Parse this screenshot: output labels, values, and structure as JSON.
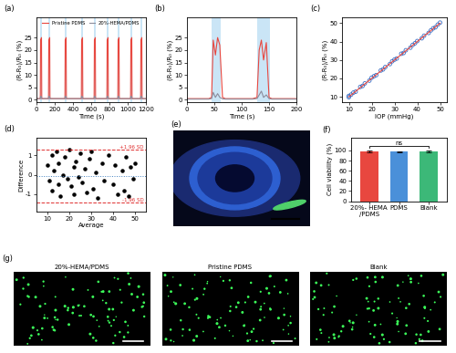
{
  "chart_data": [
    {
      "type": "line",
      "title": "(a)",
      "x_label": "Time (s)",
      "y_label": "(R-R₀)/R₀ (%)",
      "x": [
        0,
        42,
        45,
        55,
        58,
        132,
        135,
        145,
        148,
        312,
        315,
        325,
        328,
        492,
        495,
        505,
        508,
        632,
        635,
        645,
        648,
        772,
        775,
        785,
        788,
        892,
        895,
        905,
        908,
        1032,
        1035,
        1045,
        1048,
        1142,
        1145,
        1155,
        1158,
        1200
      ],
      "series": [
        {
          "name": "Pristine PDMS",
          "color": "#e8473f",
          "values": [
            0.5,
            0.5,
            24,
            25,
            0.5,
            0.5,
            24,
            25,
            0.5,
            0.5,
            24,
            25,
            0.5,
            0.5,
            24,
            25,
            0.5,
            0.5,
            24,
            25,
            0.5,
            0.5,
            24,
            25,
            0.5,
            0.5,
            24,
            25,
            0.5,
            0.5,
            24,
            25,
            0.5,
            0.5,
            24,
            25,
            0.5,
            0.5
          ]
        },
        {
          "name": "20%-HEMA/PDMS",
          "color": "#8c8c9c",
          "values": [
            0.5,
            0.5,
            1.5,
            1.2,
            0.5,
            0.5,
            1.5,
            1.2,
            0.5,
            0.5,
            1.5,
            1.2,
            0.5,
            0.5,
            1.5,
            1.2,
            0.5,
            0.5,
            1.5,
            1.2,
            0.5,
            0.5,
            1.5,
            1.2,
            0.5,
            0.5,
            1.5,
            1.2,
            0.5,
            0.5,
            1.5,
            1.2,
            0.5,
            0.5,
            1.5,
            1.2,
            0.5,
            0.5
          ]
        }
      ],
      "shaded_x": [
        [
          42,
          58
        ],
        [
          132,
          148
        ],
        [
          312,
          328
        ],
        [
          492,
          508
        ],
        [
          632,
          648
        ],
        [
          772,
          788
        ],
        [
          892,
          908
        ],
        [
          1032,
          1048
        ],
        [
          1142,
          1158
        ]
      ],
      "xlim": [
        0,
        1200
      ],
      "xticks": [
        0,
        200,
        400,
        600,
        800,
        1000,
        1200
      ],
      "ylim": [
        -1,
        33
      ],
      "yticks": [
        0,
        5,
        10,
        15,
        20,
        25
      ],
      "legend": "upper center"
    },
    {
      "type": "line",
      "title": "(b)",
      "x_label": "Time (s)",
      "y_label": "(R-R₀)/R₀ (%)",
      "x": [
        0,
        40,
        45,
        48,
        52,
        56,
        60,
        65,
        70,
        120,
        128,
        132,
        136,
        140,
        145,
        150,
        155,
        200
      ],
      "series": [
        {
          "color": "#e8473f",
          "values": [
            0.5,
            0.5,
            1,
            24,
            18,
            25,
            22,
            1,
            0.5,
            0.5,
            1,
            20,
            24,
            16,
            23,
            1,
            0.5,
            0.5
          ]
        },
        {
          "color": "#8c8c9c",
          "values": [
            0.3,
            0.3,
            0.5,
            3,
            1,
            2.5,
            1,
            0.4,
            0.3,
            0.3,
            0.5,
            2,
            3.5,
            1,
            2,
            0.5,
            0.3,
            0.3
          ]
        }
      ],
      "shaded_x": [
        [
          45,
          62
        ],
        [
          128,
          152
        ]
      ],
      "xlim": [
        0,
        200
      ],
      "xticks": [
        0,
        50,
        100,
        150,
        200
      ],
      "ylim": [
        -1,
        33
      ],
      "yticks": [
        0,
        5,
        10,
        15,
        20,
        25
      ]
    },
    {
      "type": "scatter",
      "title": "(c)",
      "x_label": "IOP (mmHg)",
      "y_label": "(R-R₀)/R₀ (%)",
      "x": [
        10,
        10,
        11,
        12,
        13,
        15,
        16,
        17,
        19,
        20,
        21,
        22,
        24,
        25,
        26,
        28,
        29,
        30,
        31,
        33,
        34,
        35,
        37,
        38,
        39,
        40,
        42,
        43,
        45,
        46,
        47,
        48,
        49,
        50
      ],
      "series": [
        {
          "color": "#3a6fc4",
          "marker": "open_circle",
          "values": [
            10.5,
            9.8,
            11.2,
            12.3,
            12.8,
            15.4,
            15.9,
            17.3,
            18.8,
            20.4,
            21.2,
            21.8,
            24.3,
            24.9,
            26.2,
            27.8,
            29.3,
            30.2,
            30.8,
            33.4,
            33.8,
            35.3,
            36.7,
            38.2,
            39.1,
            40.3,
            41.8,
            43.2,
            44.7,
            46.1,
            47.2,
            47.8,
            49.2,
            50.3
          ]
        },
        {
          "type": "line",
          "color": "#e8473f",
          "line_style": "solid",
          "x": [
            10,
            50
          ],
          "values": [
            10,
            50
          ]
        }
      ],
      "xlim": [
        7,
        53
      ],
      "xticks": [
        10,
        20,
        30,
        40,
        50
      ],
      "ylim": [
        7,
        53
      ],
      "yticks": [
        10,
        20,
        30,
        40,
        50
      ]
    },
    {
      "type": "scatter",
      "title": "(d)",
      "x_label": "Average",
      "y_label": "Difference",
      "x": [
        10,
        11,
        12,
        12,
        13,
        14,
        15,
        15,
        16,
        17,
        18,
        19,
        20,
        21,
        22,
        22,
        23,
        24,
        25,
        26,
        27,
        28,
        29,
        30,
        31,
        32,
        33,
        35,
        36,
        38,
        40,
        41,
        42,
        44,
        45,
        46,
        47,
        48,
        49,
        50
      ],
      "series": [
        {
          "color": "#000000",
          "marker": "dot",
          "values": [
            0.5,
            -0.3,
            1.0,
            -0.8,
            0.2,
            1.2,
            -0.5,
            0.6,
            -1.1,
            0.0,
            0.9,
            -0.2,
            1.3,
            -0.6,
            0.4,
            -1.0,
            0.7,
            -0.1,
            1.1,
            -0.4,
            0.3,
            -0.9,
            0.8,
            1.2,
            -0.7,
            0.1,
            -1.2,
            0.6,
            -0.3,
            1.0,
            -0.5,
            0.5,
            -1.0,
            0.2,
            -0.8,
            0.9,
            -1.1,
            0.4,
            -0.2,
            0.6
          ]
        }
      ],
      "reference_lines": [
        {
          "value": 1.3,
          "label": "+1.96 SD",
          "color": "#e03030",
          "line_style": "dashed"
        },
        {
          "value": -1.4,
          "label": "-1.96 SD",
          "color": "#e03030",
          "line_style": "dashed"
        },
        {
          "value": -0.05,
          "color": "#4080c0",
          "line_style": "dotted"
        }
      ],
      "xlim": [
        5,
        55
      ],
      "xticks": [
        10,
        20,
        30,
        40,
        50
      ],
      "ylim": [
        -1.9,
        1.9
      ],
      "yticks": [
        -1,
        0,
        1
      ]
    },
    {
      "type": "bar",
      "title": "(f)",
      "y_label": "Cell viability (%)",
      "categories": [
        "20%- HEMA\n/PDMS",
        "PDMS",
        "Blank"
      ],
      "values": [
        98,
        97.5,
        97.8
      ],
      "errors": [
        1.5,
        1.2,
        1.5
      ],
      "colors": [
        "#e8473f",
        "#4a90d9",
        "#3cb878"
      ],
      "annotation": "ns",
      "ylim": [
        0,
        125
      ],
      "yticks": [
        0,
        20,
        40,
        60,
        80,
        100
      ]
    }
  ],
  "images": [
    {
      "title": "(e)"
    },
    {
      "title": "(g)",
      "panels": [
        "20%-HEMA/PDMS",
        "Pristine PDMS",
        "Blank"
      ]
    }
  ]
}
